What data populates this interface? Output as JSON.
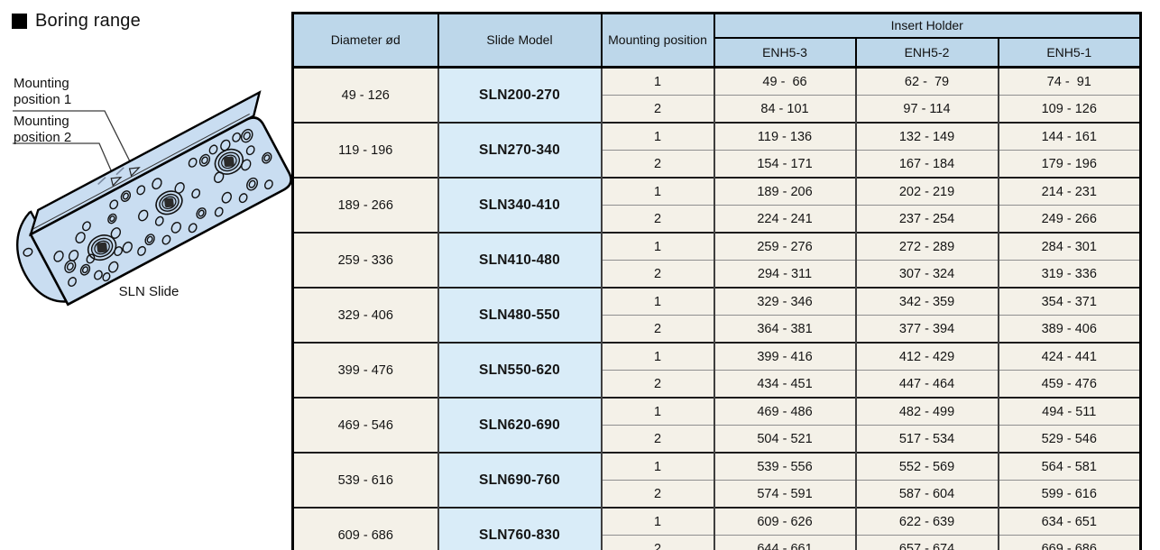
{
  "page": {
    "section_title": "Boring range"
  },
  "illustration": {
    "caption": "SLN Slide",
    "label_mounting_1": [
      "Mounting",
      "position 1"
    ],
    "label_mounting_2": [
      "Mounting",
      "position 2"
    ]
  },
  "colors": {
    "header_bg": "#bdd7ea",
    "model_column_bg": "#d9ecf8",
    "cell_bg": "#f4f1e8",
    "drawing_fill": "#c9ddf1",
    "outline": "#000000"
  },
  "table": {
    "headers": {
      "diameter": "Diameter ød",
      "slide_model": "Slide Model",
      "mounting_position": "Mounting position",
      "insert_holder": "Insert Holder",
      "insert_models": [
        "ENH5-3",
        "ENH5-2",
        "ENH5-1"
      ]
    },
    "groups": [
      {
        "diameter": "49 - 126",
        "model": "SLN200-270",
        "rows": [
          {
            "position": "1",
            "enh5_3": "49 -  66",
            "enh5_2": "62 -  79",
            "enh5_1": "74 -  91"
          },
          {
            "position": "2",
            "enh5_3": "84 - 101",
            "enh5_2": "97 - 114",
            "enh5_1": "109 - 126"
          }
        ]
      },
      {
        "diameter": "119 - 196",
        "model": "SLN270-340",
        "rows": [
          {
            "position": "1",
            "enh5_3": "119 - 136",
            "enh5_2": "132 - 149",
            "enh5_1": "144 - 161"
          },
          {
            "position": "2",
            "enh5_3": "154 - 171",
            "enh5_2": "167 - 184",
            "enh5_1": "179 - 196"
          }
        ]
      },
      {
        "diameter": "189 - 266",
        "model": "SLN340-410",
        "rows": [
          {
            "position": "1",
            "enh5_3": "189 - 206",
            "enh5_2": "202 - 219",
            "enh5_1": "214 - 231"
          },
          {
            "position": "2",
            "enh5_3": "224 - 241",
            "enh5_2": "237 - 254",
            "enh5_1": "249 - 266"
          }
        ]
      },
      {
        "diameter": "259 - 336",
        "model": "SLN410-480",
        "rows": [
          {
            "position": "1",
            "enh5_3": "259 - 276",
            "enh5_2": "272 - 289",
            "enh5_1": "284 - 301"
          },
          {
            "position": "2",
            "enh5_3": "294 - 311",
            "enh5_2": "307 - 324",
            "enh5_1": "319 - 336"
          }
        ]
      },
      {
        "diameter": "329 - 406",
        "model": "SLN480-550",
        "rows": [
          {
            "position": "1",
            "enh5_3": "329 - 346",
            "enh5_2": "342 - 359",
            "enh5_1": "354 - 371"
          },
          {
            "position": "2",
            "enh5_3": "364 - 381",
            "enh5_2": "377 - 394",
            "enh5_1": "389 - 406"
          }
        ]
      },
      {
        "diameter": "399 - 476",
        "model": "SLN550-620",
        "rows": [
          {
            "position": "1",
            "enh5_3": "399 - 416",
            "enh5_2": "412 - 429",
            "enh5_1": "424 - 441"
          },
          {
            "position": "2",
            "enh5_3": "434 - 451",
            "enh5_2": "447 - 464",
            "enh5_1": "459 - 476"
          }
        ]
      },
      {
        "diameter": "469 - 546",
        "model": "SLN620-690",
        "rows": [
          {
            "position": "1",
            "enh5_3": "469 - 486",
            "enh5_2": "482 - 499",
            "enh5_1": "494 - 511"
          },
          {
            "position": "2",
            "enh5_3": "504 - 521",
            "enh5_2": "517 - 534",
            "enh5_1": "529 - 546"
          }
        ]
      },
      {
        "diameter": "539 - 616",
        "model": "SLN690-760",
        "rows": [
          {
            "position": "1",
            "enh5_3": "539 - 556",
            "enh5_2": "552 - 569",
            "enh5_1": "564 - 581"
          },
          {
            "position": "2",
            "enh5_3": "574 - 591",
            "enh5_2": "587 - 604",
            "enh5_1": "599 - 616"
          }
        ]
      },
      {
        "diameter": "609 - 686",
        "model": "SLN760-830",
        "rows": [
          {
            "position": "1",
            "enh5_3": "609 - 626",
            "enh5_2": "622 - 639",
            "enh5_1": "634 - 651"
          },
          {
            "position": "2",
            "enh5_3": "644 - 661",
            "enh5_2": "657 - 674",
            "enh5_1": "669 - 686"
          }
        ]
      }
    ]
  }
}
